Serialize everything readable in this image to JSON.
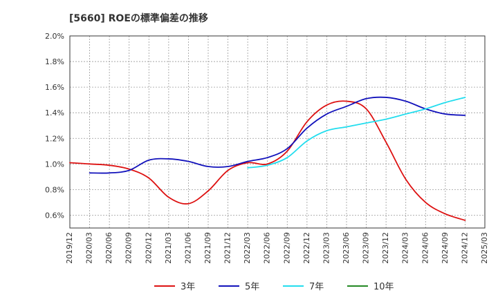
{
  "chart_data": {
    "type": "line",
    "title": "[5660]  ROEの標準偏差の推移",
    "xlabel": "",
    "ylabel": "",
    "ylim": [
      0.5,
      2.0
    ],
    "y_ticks": [
      "0.6%",
      "0.8%",
      "1.0%",
      "1.2%",
      "1.4%",
      "1.6%",
      "1.8%",
      "2.0%"
    ],
    "y_tick_values": [
      0.6,
      0.8,
      1.0,
      1.2,
      1.4,
      1.6,
      1.8,
      2.0
    ],
    "categories": [
      "2019/12",
      "2020/03",
      "2020/06",
      "2020/09",
      "2020/12",
      "2021/03",
      "2021/06",
      "2021/09",
      "2021/12",
      "2022/03",
      "2022/06",
      "2022/09",
      "2022/12",
      "2023/03",
      "2023/06",
      "2023/09",
      "2023/12",
      "2024/03",
      "2024/06",
      "2024/09",
      "2024/12",
      "2025/03"
    ],
    "grid": true,
    "legend_position": "bottom",
    "series": [
      {
        "name": "3年",
        "color": "#dd1111",
        "values": [
          1.01,
          1.0,
          0.99,
          0.96,
          0.89,
          0.74,
          0.69,
          0.79,
          0.95,
          1.01,
          1.0,
          1.1,
          1.33,
          1.46,
          1.49,
          1.43,
          1.17,
          0.88,
          0.7,
          0.61,
          0.56,
          null
        ]
      },
      {
        "name": "5年",
        "color": "#1111bb",
        "values": [
          null,
          0.93,
          0.93,
          0.95,
          1.03,
          1.04,
          1.02,
          0.98,
          0.98,
          1.02,
          1.05,
          1.12,
          1.28,
          1.39,
          1.45,
          1.51,
          1.52,
          1.49,
          1.43,
          1.39,
          1.38,
          null
        ]
      },
      {
        "name": "7年",
        "color": "#22ddee",
        "values": [
          null,
          null,
          null,
          null,
          null,
          null,
          null,
          null,
          null,
          0.97,
          0.99,
          1.05,
          1.18,
          1.26,
          1.29,
          1.32,
          1.35,
          1.39,
          1.43,
          1.48,
          1.52,
          null
        ]
      },
      {
        "name": "10年",
        "color": "#228822",
        "values": [
          null,
          null,
          null,
          null,
          null,
          null,
          null,
          null,
          null,
          null,
          null,
          null,
          null,
          null,
          null,
          null,
          null,
          null,
          null,
          null,
          null,
          null
        ]
      }
    ]
  }
}
